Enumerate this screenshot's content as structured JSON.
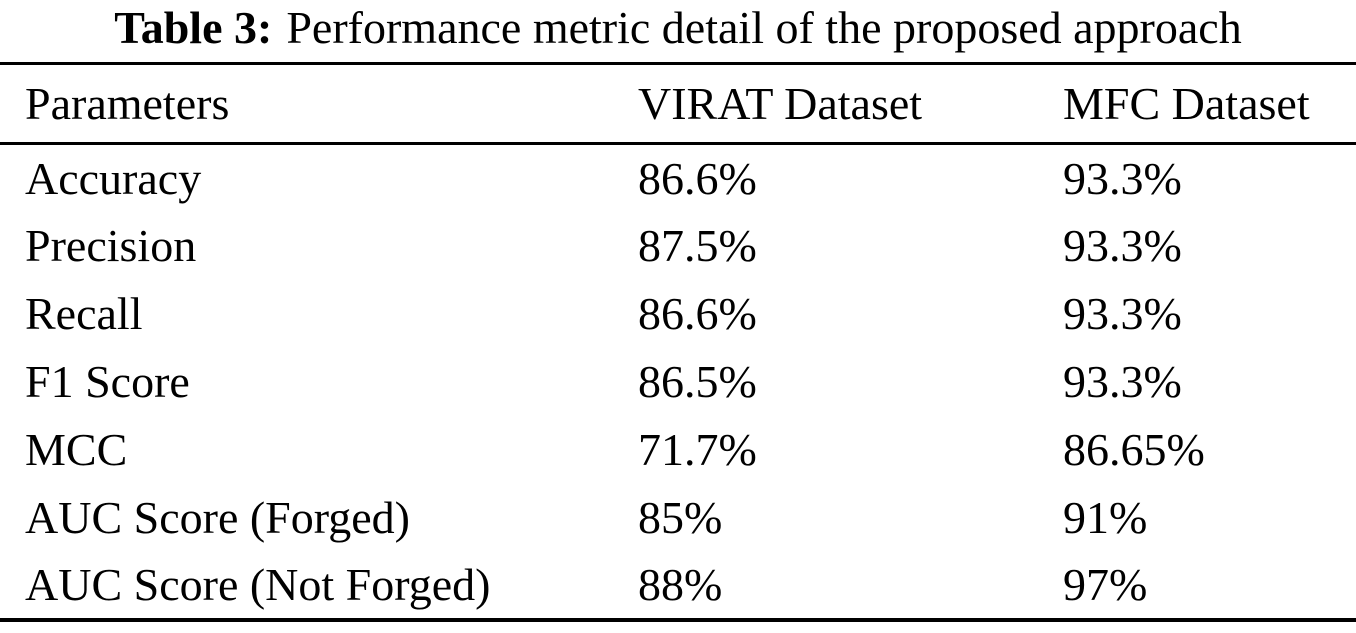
{
  "page": {
    "background": "#ffffff",
    "text_color": "#000000",
    "rule_color": "#000000"
  },
  "caption": {
    "label": "Table 3:",
    "text": "Performance metric detail of the proposed approach"
  },
  "table": {
    "columns": [
      "Parameters",
      "VIRAT Dataset",
      "MFC Dataset"
    ],
    "rows": [
      {
        "parameter": "Accuracy",
        "virat": "86.6%",
        "mfc": "93.3%"
      },
      {
        "parameter": "Precision",
        "virat": "87.5%",
        "mfc": "93.3%"
      },
      {
        "parameter": "Recall",
        "virat": "86.6%",
        "mfc": "93.3%"
      },
      {
        "parameter": "F1 Score",
        "virat": "86.5%",
        "mfc": "93.3%"
      },
      {
        "parameter": "MCC",
        "virat": "71.7%",
        "mfc": "86.65%"
      },
      {
        "parameter": "AUC Score (Forged)",
        "virat": "85%",
        "mfc": "91%"
      },
      {
        "parameter": "AUC Score (Not Forged)",
        "virat": "88%",
        "mfc": "97%"
      }
    ]
  },
  "chart_data": {
    "type": "table",
    "title": "Table 3: Performance metric detail of the proposed approach",
    "columns": [
      "Parameters",
      "VIRAT Dataset",
      "MFC Dataset"
    ],
    "rows": [
      [
        "Accuracy",
        "86.6%",
        "93.3%"
      ],
      [
        "Precision",
        "87.5%",
        "93.3%"
      ],
      [
        "Recall",
        "86.6%",
        "93.3%"
      ],
      [
        "F1 Score",
        "86.5%",
        "93.3%"
      ],
      [
        "MCC",
        "71.7%",
        "86.65%"
      ],
      [
        "AUC Score (Forged)",
        "85%",
        "91%"
      ],
      [
        "AUC Score (Not Forged)",
        "88%",
        "97%"
      ]
    ]
  }
}
